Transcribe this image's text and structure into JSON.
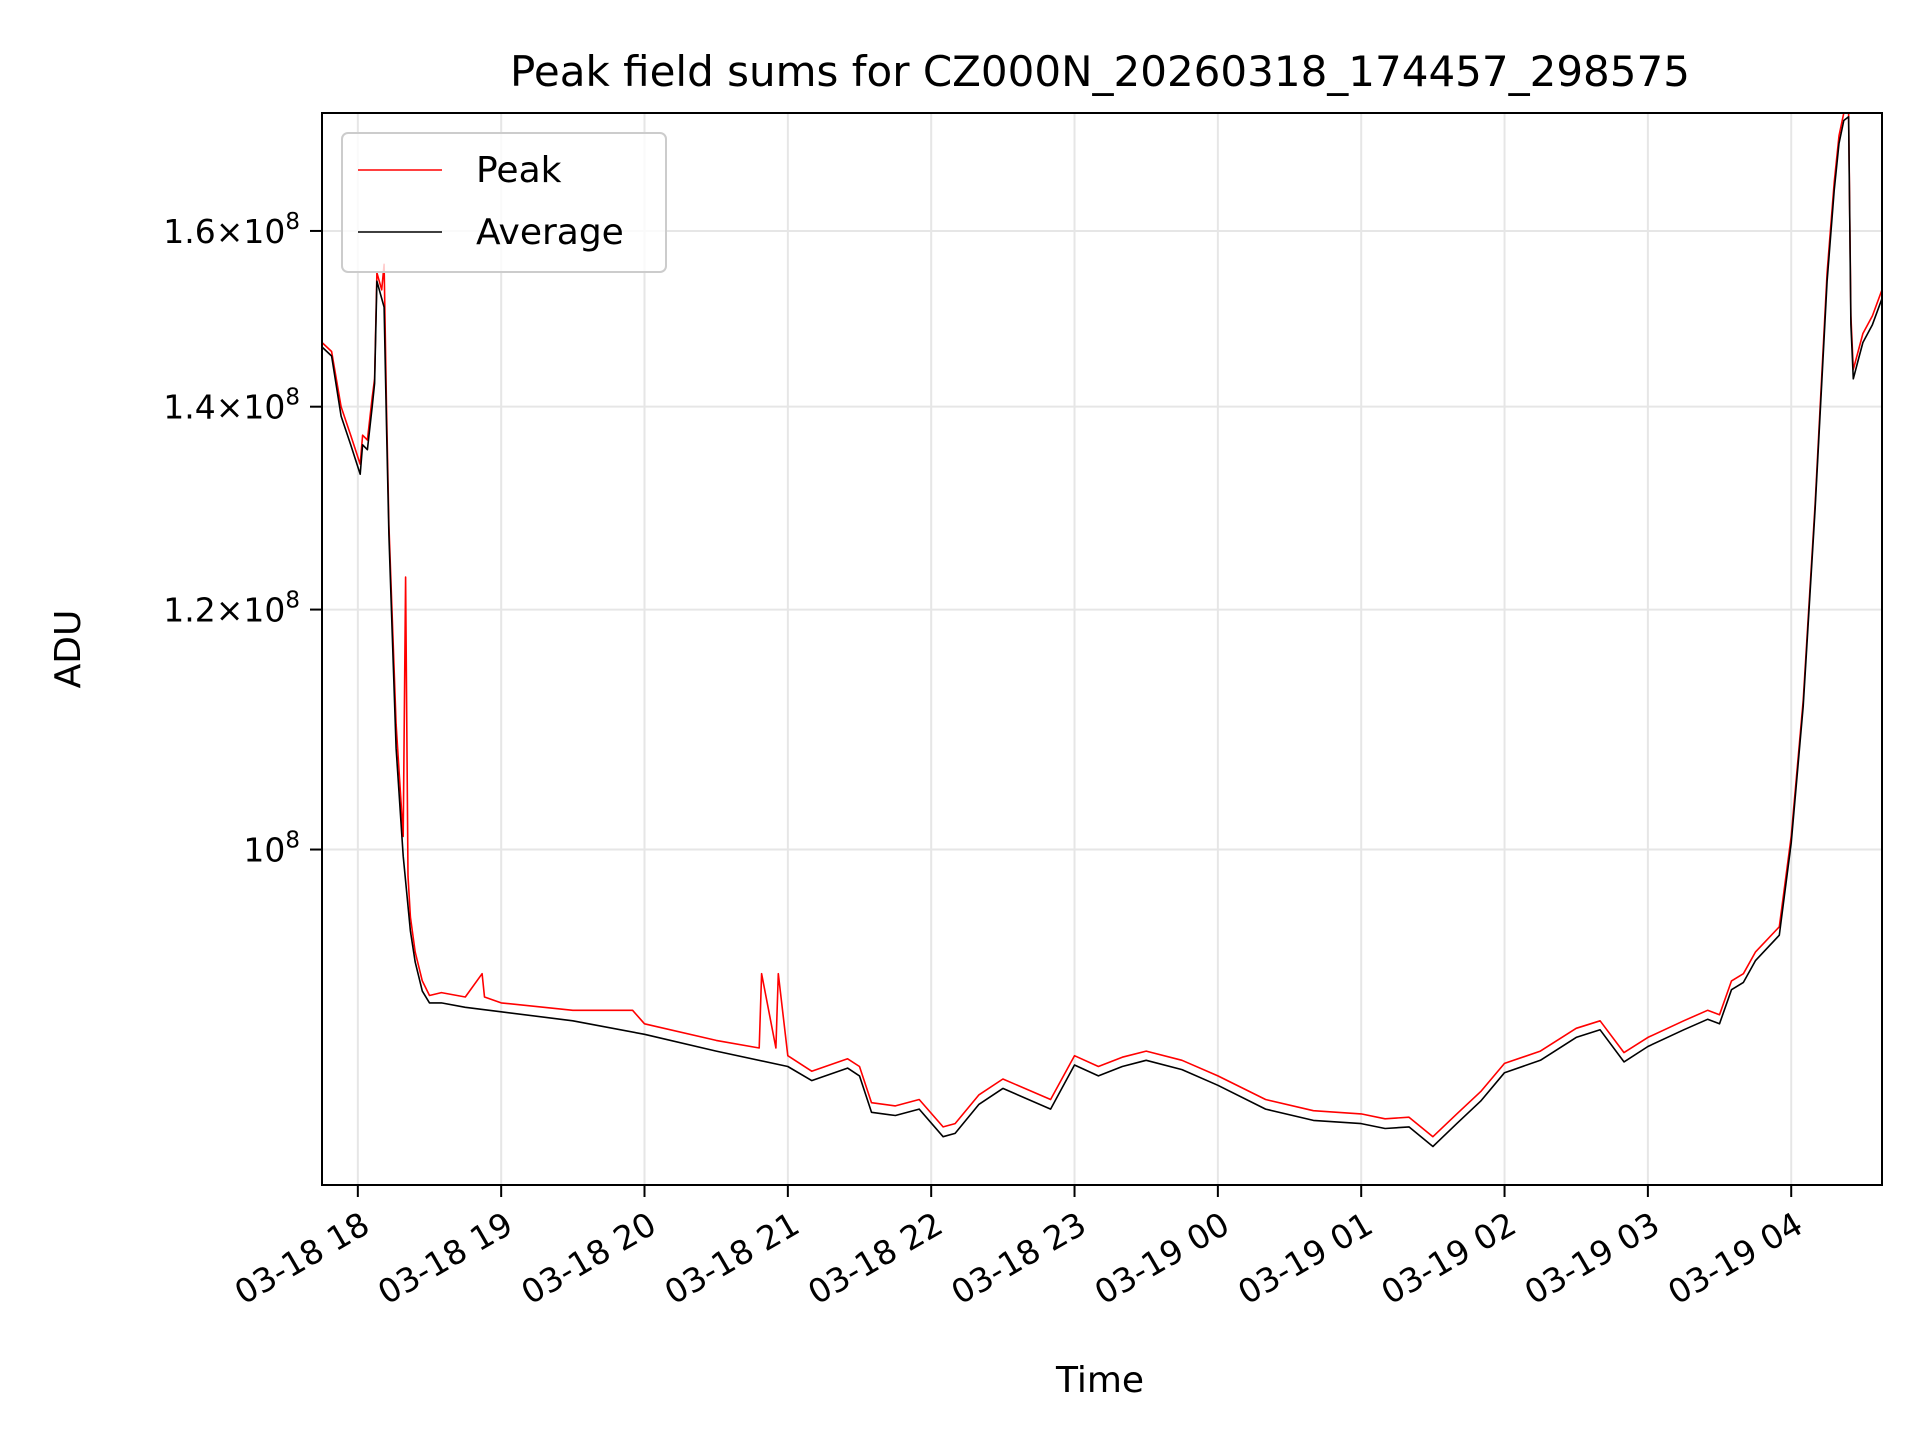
{
  "chart_data": {
    "type": "line",
    "title": "Peak field sums for CZ000N_20260318_174457_298575",
    "xlabel": "Time",
    "ylabel": "ADU",
    "x_range": [
      "2026-03-18 17:45",
      "2026-03-19 04:38"
    ],
    "ylim": [
      77500000,
      175000000
    ],
    "y_scale": "log",
    "grid": true,
    "legend_position": "top-left",
    "x_ticks": [
      {
        "value": "2026-03-18 18:00",
        "label": "03-18 18"
      },
      {
        "value": "2026-03-18 19:00",
        "label": "03-18 19"
      },
      {
        "value": "2026-03-18 20:00",
        "label": "03-18 20"
      },
      {
        "value": "2026-03-18 21:00",
        "label": "03-18 21"
      },
      {
        "value": "2026-03-18 22:00",
        "label": "03-18 22"
      },
      {
        "value": "2026-03-18 23:00",
        "label": "03-18 23"
      },
      {
        "value": "2026-03-19 00:00",
        "label": "03-19 00"
      },
      {
        "value": "2026-03-19 01:00",
        "label": "03-19 01"
      },
      {
        "value": "2026-03-19 02:00",
        "label": "03-19 02"
      },
      {
        "value": "2026-03-19 03:00",
        "label": "03-19 03"
      },
      {
        "value": "2026-03-19 04:00",
        "label": "03-19 04"
      }
    ],
    "y_ticks": [
      {
        "value": 100000000,
        "mantissa": "",
        "exponent": "8"
      },
      {
        "value": 120000000,
        "mantissa": "1.2",
        "exponent": "8"
      },
      {
        "value": 140000000,
        "mantissa": "1.4",
        "exponent": "8"
      },
      {
        "value": 160000000,
        "mantissa": "1.6",
        "exponent": "8"
      }
    ],
    "series": [
      {
        "name": "Peak",
        "color": "#ff0000",
        "x": [
          "2026-03-18 17:45",
          "2026-03-18 17:49",
          "2026-03-18 17:53",
          "2026-03-18 17:57",
          "2026-03-18 18:01",
          "2026-03-18 18:02",
          "2026-03-18 18:04",
          "2026-03-18 18:06",
          "2026-03-18 18:07",
          "2026-03-18 18:08",
          "2026-03-18 18:10",
          "2026-03-18 18:11",
          "2026-03-18 18:12",
          "2026-03-18 18:13",
          "2026-03-18 18:16",
          "2026-03-18 18:19",
          "2026-03-18 18:20",
          "2026-03-18 18:21",
          "2026-03-18 18:22",
          "2026-03-18 18:24",
          "2026-03-18 18:27",
          "2026-03-18 18:30",
          "2026-03-18 18:35",
          "2026-03-18 18:45",
          "2026-03-18 18:52",
          "2026-03-18 18:53",
          "2026-03-18 19:00",
          "2026-03-18 19:30",
          "2026-03-18 19:55",
          "2026-03-18 20:00",
          "2026-03-18 20:30",
          "2026-03-18 20:48",
          "2026-03-18 20:49",
          "2026-03-18 20:55",
          "2026-03-18 20:56",
          "2026-03-18 21:00",
          "2026-03-18 21:10",
          "2026-03-18 21:25",
          "2026-03-18 21:30",
          "2026-03-18 21:35",
          "2026-03-18 21:45",
          "2026-03-18 21:55",
          "2026-03-18 22:05",
          "2026-03-18 22:10",
          "2026-03-18 22:20",
          "2026-03-18 22:30",
          "2026-03-18 22:50",
          "2026-03-18 23:00",
          "2026-03-18 23:10",
          "2026-03-18 23:20",
          "2026-03-18 23:30",
          "2026-03-18 23:45",
          "2026-03-19 00:00",
          "2026-03-19 00:20",
          "2026-03-19 00:40",
          "2026-03-19 01:00",
          "2026-03-19 01:10",
          "2026-03-19 01:20",
          "2026-03-19 01:30",
          "2026-03-19 01:40",
          "2026-03-19 01:50",
          "2026-03-19 02:00",
          "2026-03-19 02:15",
          "2026-03-19 02:30",
          "2026-03-19 02:40",
          "2026-03-19 02:50",
          "2026-03-19 03:00",
          "2026-03-19 03:15",
          "2026-03-19 03:25",
          "2026-03-19 03:30",
          "2026-03-19 03:35",
          "2026-03-19 03:40",
          "2026-03-19 03:45",
          "2026-03-19 03:55",
          "2026-03-19 04:00",
          "2026-03-19 04:05",
          "2026-03-19 04:10",
          "2026-03-19 04:15",
          "2026-03-19 04:18",
          "2026-03-19 04:20",
          "2026-03-19 04:22",
          "2026-03-19 04:24",
          "2026-03-19 04:25",
          "2026-03-19 04:26",
          "2026-03-19 04:28",
          "2026-03-19 04:30",
          "2026-03-19 04:34",
          "2026-03-19 04:38"
        ],
        "y": [
          147000000,
          146000000,
          140000000,
          137000000,
          134000000,
          137000000,
          136500000,
          141000000,
          143000000,
          155000000,
          153000000,
          156000000,
          140000000,
          128000000,
          110000000,
          101000000,
          123000000,
          98000000,
          95000000,
          92500000,
          90500000,
          89500000,
          89700000,
          89400000,
          91000000,
          89400000,
          89000000,
          88500000,
          88500000,
          87600000,
          86500000,
          86000000,
          91000000,
          86000000,
          91000000,
          85500000,
          84500000,
          85300000,
          84800000,
          82500000,
          82300000,
          82700000,
          81000000,
          81200000,
          83000000,
          84000000,
          82700000,
          85500000,
          84800000,
          85400000,
          85800000,
          85200000,
          84200000,
          82700000,
          82000000,
          81800000,
          81500000,
          81600000,
          80400000,
          81800000,
          83200000,
          85000000,
          85800000,
          87300000,
          87800000,
          85700000,
          86700000,
          87800000,
          88500000,
          88200000,
          90500000,
          91000000,
          92500000,
          94300000,
          101000000,
          112000000,
          130000000,
          155000000,
          166000000,
          172000000,
          175000000,
          175000000,
          150000000,
          144000000,
          146000000,
          148000000,
          150000000,
          153000000
        ]
      },
      {
        "name": "Average",
        "color": "#000000",
        "x": [
          "2026-03-18 17:45",
          "2026-03-18 17:49",
          "2026-03-18 17:53",
          "2026-03-18 17:57",
          "2026-03-18 18:01",
          "2026-03-18 18:02",
          "2026-03-18 18:04",
          "2026-03-18 18:06",
          "2026-03-18 18:07",
          "2026-03-18 18:08",
          "2026-03-18 18:10",
          "2026-03-18 18:11",
          "2026-03-18 18:12",
          "2026-03-18 18:13",
          "2026-03-18 18:16",
          "2026-03-18 18:19",
          "2026-03-18 18:22",
          "2026-03-18 18:24",
          "2026-03-18 18:27",
          "2026-03-18 18:30",
          "2026-03-18 18:35",
          "2026-03-18 18:45",
          "2026-03-18 19:00",
          "2026-03-18 19:30",
          "2026-03-18 20:00",
          "2026-03-18 20:30",
          "2026-03-18 21:00",
          "2026-03-18 21:10",
          "2026-03-18 21:25",
          "2026-03-18 21:30",
          "2026-03-18 21:35",
          "2026-03-18 21:45",
          "2026-03-18 21:55",
          "2026-03-18 22:05",
          "2026-03-18 22:10",
          "2026-03-18 22:20",
          "2026-03-18 22:30",
          "2026-03-18 22:50",
          "2026-03-18 23:00",
          "2026-03-18 23:10",
          "2026-03-18 23:20",
          "2026-03-18 23:30",
          "2026-03-18 23:45",
          "2026-03-19 00:00",
          "2026-03-19 00:20",
          "2026-03-19 00:40",
          "2026-03-19 01:00",
          "2026-03-19 01:10",
          "2026-03-19 01:20",
          "2026-03-19 01:30",
          "2026-03-19 01:40",
          "2026-03-19 01:50",
          "2026-03-19 02:00",
          "2026-03-19 02:15",
          "2026-03-19 02:30",
          "2026-03-19 02:40",
          "2026-03-19 02:50",
          "2026-03-19 03:00",
          "2026-03-19 03:15",
          "2026-03-19 03:25",
          "2026-03-19 03:30",
          "2026-03-19 03:35",
          "2026-03-19 03:40",
          "2026-03-19 03:45",
          "2026-03-19 03:55",
          "2026-03-19 04:00",
          "2026-03-19 04:05",
          "2026-03-19 04:10",
          "2026-03-19 04:15",
          "2026-03-19 04:18",
          "2026-03-19 04:20",
          "2026-03-19 04:22",
          "2026-03-19 04:24",
          "2026-03-19 04:25",
          "2026-03-19 04:26",
          "2026-03-19 04:28",
          "2026-03-19 04:30",
          "2026-03-19 04:34",
          "2026-03-19 04:38"
        ],
        "y": [
          146500000,
          145500000,
          139000000,
          136000000,
          133000000,
          136000000,
          135500000,
          140000000,
          142500000,
          154000000,
          152000000,
          151000000,
          138000000,
          127000000,
          108000000,
          99500000,
          94000000,
          91800000,
          89800000,
          89000000,
          89000000,
          88700000,
          88400000,
          87800000,
          86900000,
          85800000,
          84800000,
          83900000,
          84700000,
          84200000,
          81900000,
          81700000,
          82100000,
          80400000,
          80600000,
          82400000,
          83400000,
          82100000,
          84900000,
          84200000,
          84800000,
          85200000,
          84600000,
          83600000,
          82100000,
          81400000,
          81200000,
          80900000,
          81000000,
          79800000,
          81200000,
          82600000,
          84400000,
          85200000,
          86700000,
          87200000,
          85100000,
          86100000,
          87200000,
          87900000,
          87600000,
          89900000,
          90400000,
          91900000,
          93700000,
          100500000,
          111500000,
          129500000,
          154000000,
          165000000,
          171000000,
          174000000,
          174500000,
          149000000,
          143000000,
          145000000,
          147000000,
          149000000,
          152000000
        ]
      }
    ]
  }
}
